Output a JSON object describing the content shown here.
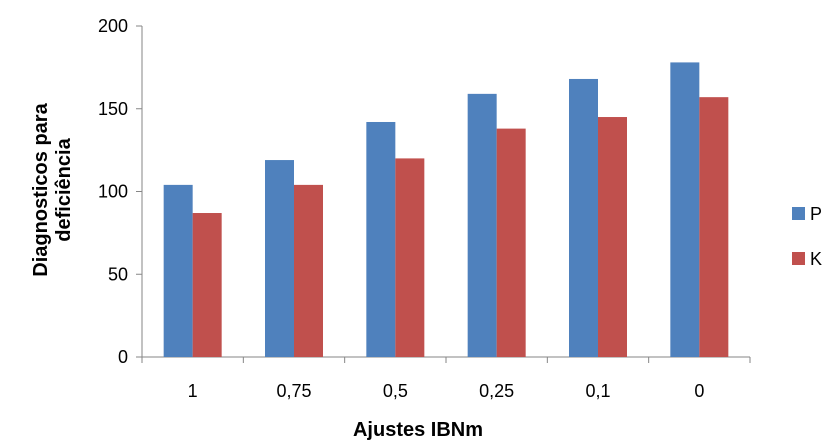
{
  "chart_data": {
    "type": "bar",
    "categories": [
      "1",
      "0,75",
      "0,5",
      "0,25",
      "0,1",
      "0"
    ],
    "series": [
      {
        "name": "P",
        "color": "#4f81bd",
        "values": [
          104,
          119,
          142,
          159,
          168,
          178
        ]
      },
      {
        "name": "K",
        "color": "#c0504d",
        "values": [
          87,
          104,
          120,
          138,
          145,
          157
        ]
      }
    ],
    "xlabel": "Ajustes IBNm",
    "ylabel": [
      "Diagnosticos para",
      "deficiência"
    ],
    "ylim": [
      0,
      200
    ],
    "yticks": [
      "0",
      "50",
      "100",
      "150",
      "200"
    ],
    "grid": false,
    "legend_position": "right"
  }
}
